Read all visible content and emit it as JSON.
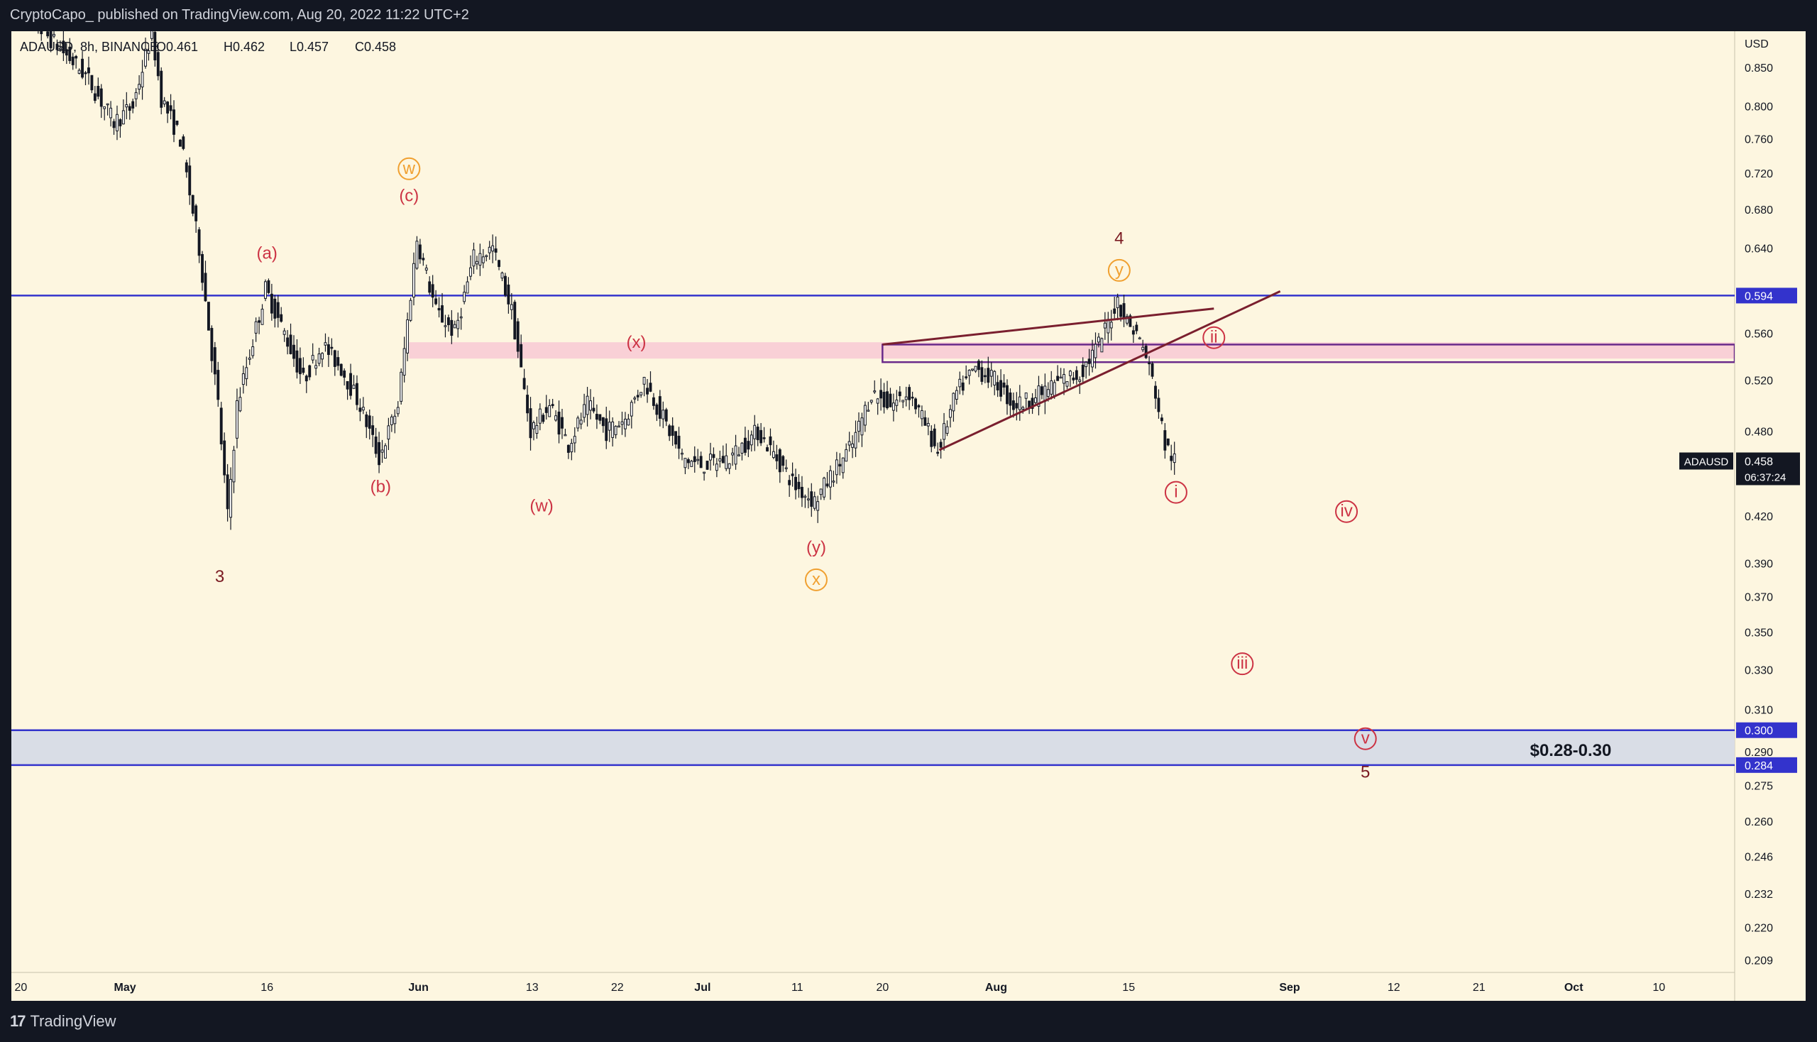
{
  "header": {
    "published_text": "CryptoCapo_ published on TradingView.com, Aug 20, 2022 11:22 UTC+2"
  },
  "footer": {
    "logo_text": "TradingView"
  },
  "colors": {
    "background": "#fdf6e0",
    "frame": "#131722",
    "candle_up": "#ffffff",
    "candle_down": "#131722",
    "blue_line": "#3333cc",
    "pink_band": "#f8c9d4",
    "support_band": "#d9dde6",
    "wedge_line": "#7a1f2e",
    "label_red": "#cc3344",
    "label_orange": "#f0a030",
    "label_dark": "#7a1a22"
  },
  "chart_data": {
    "type": "candlestick",
    "symbol_line": {
      "symbol": "ADAUSD, 8h, BINANCE",
      "open": "O0.461",
      "high": "H0.462",
      "low": "L0.457",
      "close": "C0.458"
    },
    "currency": "USD",
    "scale": "log",
    "ylim": [
      0.205,
      0.9
    ],
    "y_ticks": [
      0.85,
      0.8,
      0.76,
      0.72,
      0.68,
      0.64,
      0.56,
      0.52,
      0.48,
      0.42,
      0.39,
      0.37,
      0.35,
      0.33,
      0.31,
      0.29,
      0.275,
      0.26,
      0.246,
      0.232,
      0.22,
      0.209
    ],
    "y_tick_labels": [
      "0.850",
      "0.800",
      "0.760",
      "0.720",
      "0.680",
      "0.640",
      "0.560",
      "0.520",
      "0.480",
      "0.420",
      "0.390",
      "0.370",
      "0.350",
      "0.330",
      "0.310",
      "0.290",
      "0.275",
      "0.260",
      "0.246",
      "0.232",
      "0.220",
      "0.209"
    ],
    "x_range": [
      "2022-04-19",
      "2022-10-18"
    ],
    "x_ticks": [
      {
        "date": "2022-04-20",
        "label": "20"
      },
      {
        "date": "2022-05-01",
        "label": "May"
      },
      {
        "date": "2022-05-16",
        "label": "16"
      },
      {
        "date": "2022-06-01",
        "label": "Jun"
      },
      {
        "date": "2022-06-13",
        "label": "13"
      },
      {
        "date": "2022-06-22",
        "label": "22"
      },
      {
        "date": "2022-07-01",
        "label": "Jul"
      },
      {
        "date": "2022-07-11",
        "label": "11"
      },
      {
        "date": "2022-07-20",
        "label": "20"
      },
      {
        "date": "2022-08-01",
        "label": "Aug"
      },
      {
        "date": "2022-08-15",
        "label": "15"
      },
      {
        "date": "2022-09-01",
        "label": "Sep"
      },
      {
        "date": "2022-09-12",
        "label": "12"
      },
      {
        "date": "2022-09-21",
        "label": "21"
      },
      {
        "date": "2022-10-01",
        "label": "Oct"
      },
      {
        "date": "2022-10-10",
        "label": "10"
      }
    ],
    "price_path": [
      [
        "2022-04-19",
        0.94
      ],
      [
        "2022-04-21",
        0.92
      ],
      [
        "2022-04-24",
        0.88
      ],
      [
        "2022-04-27",
        0.84
      ],
      [
        "2022-04-30",
        0.78
      ],
      [
        "2022-05-02",
        0.8
      ],
      [
        "2022-05-04",
        0.9
      ],
      [
        "2022-05-05",
        0.81
      ],
      [
        "2022-05-07",
        0.76
      ],
      [
        "2022-05-09",
        0.64
      ],
      [
        "2022-05-11",
        0.5
      ],
      [
        "2022-05-12",
        0.42
      ],
      [
        "2022-05-13",
        0.5
      ],
      [
        "2022-05-16",
        0.6
      ],
      [
        "2022-05-18",
        0.56
      ],
      [
        "2022-05-20",
        0.52
      ],
      [
        "2022-05-22",
        0.55
      ],
      [
        "2022-05-24",
        0.53
      ],
      [
        "2022-05-26",
        0.5
      ],
      [
        "2022-05-28",
        0.46
      ],
      [
        "2022-05-30",
        0.5
      ],
      [
        "2022-06-01",
        0.65
      ],
      [
        "2022-06-03",
        0.58
      ],
      [
        "2022-06-05",
        0.56
      ],
      [
        "2022-06-07",
        0.63
      ],
      [
        "2022-06-09",
        0.64
      ],
      [
        "2022-06-11",
        0.58
      ],
      [
        "2022-06-13",
        0.48
      ],
      [
        "2022-06-15",
        0.5
      ],
      [
        "2022-06-17",
        0.47
      ],
      [
        "2022-06-19",
        0.5
      ],
      [
        "2022-06-21",
        0.48
      ],
      [
        "2022-06-23",
        0.49
      ],
      [
        "2022-06-25",
        0.52
      ],
      [
        "2022-06-27",
        0.49
      ],
      [
        "2022-06-29",
        0.46
      ],
      [
        "2022-07-01",
        0.455
      ],
      [
        "2022-07-04",
        0.46
      ],
      [
        "2022-07-07",
        0.48
      ],
      [
        "2022-07-09",
        0.46
      ],
      [
        "2022-07-11",
        0.44
      ],
      [
        "2022-07-13",
        0.43
      ],
      [
        "2022-07-15",
        0.45
      ],
      [
        "2022-07-17",
        0.47
      ],
      [
        "2022-07-19",
        0.51
      ],
      [
        "2022-07-21",
        0.5
      ],
      [
        "2022-07-23",
        0.51
      ],
      [
        "2022-07-25",
        0.48
      ],
      [
        "2022-07-26",
        0.465
      ],
      [
        "2022-07-28",
        0.51
      ],
      [
        "2022-07-30",
        0.53
      ],
      [
        "2022-08-01",
        0.52
      ],
      [
        "2022-08-03",
        0.5
      ],
      [
        "2022-08-05",
        0.505
      ],
      [
        "2022-08-08",
        0.52
      ],
      [
        "2022-08-10",
        0.525
      ],
      [
        "2022-08-12",
        0.55
      ],
      [
        "2022-08-14",
        0.59
      ],
      [
        "2022-08-15",
        0.57
      ],
      [
        "2022-08-16",
        0.56
      ],
      [
        "2022-08-17",
        0.54
      ],
      [
        "2022-08-18",
        0.51
      ],
      [
        "2022-08-19",
        0.47
      ],
      [
        "2022-08-20",
        0.458
      ]
    ],
    "horizontal_levels": [
      {
        "price": 0.594,
        "label": "0.594",
        "from": "2022-04-19"
      },
      {
        "price": 0.3,
        "label": "0.300",
        "from": "2022-04-19"
      },
      {
        "price": 0.284,
        "label": "0.284",
        "from": "2022-04-19"
      }
    ],
    "resistance_band": {
      "from": "2022-05-31",
      "low": 0.538,
      "high": 0.552
    },
    "right_rectangle": {
      "from": "2022-07-20",
      "low": 0.535,
      "high": 0.55
    },
    "support_zone": {
      "low": 0.284,
      "high": 0.3,
      "label": "$0.28-0.30"
    },
    "wedge_lines": [
      {
        "from": [
          "2022-07-20",
          0.55
        ],
        "to": [
          "2022-08-24",
          0.582
        ]
      },
      {
        "from": [
          "2022-07-26",
          0.466
        ],
        "to": [
          "2022-08-31",
          0.598
        ]
      }
    ],
    "current_price": {
      "symbol": "ADAUSD",
      "value": "0.458",
      "countdown": "06:37:24"
    },
    "wave_labels": [
      {
        "text": "3",
        "date": "2022-05-11",
        "price": 0.382,
        "style": "dark"
      },
      {
        "text": "(a)",
        "date": "2022-05-16",
        "price": 0.635,
        "style": "red"
      },
      {
        "text": "(b)",
        "date": "2022-05-28",
        "price": 0.44,
        "style": "red"
      },
      {
        "text": "w",
        "date": "2022-05-31",
        "price": 0.725,
        "style": "orange-circle"
      },
      {
        "text": "(c)",
        "date": "2022-05-31",
        "price": 0.695,
        "style": "red"
      },
      {
        "text": "(x)",
        "date": "2022-06-24",
        "price": 0.552,
        "style": "red"
      },
      {
        "text": "(w)",
        "date": "2022-06-14",
        "price": 0.427,
        "style": "red"
      },
      {
        "text": "(y)",
        "date": "2022-07-13",
        "price": 0.4,
        "style": "red"
      },
      {
        "text": "x",
        "date": "2022-07-13",
        "price": 0.38,
        "style": "orange-circle"
      },
      {
        "text": "4",
        "date": "2022-08-14",
        "price": 0.65,
        "style": "dark"
      },
      {
        "text": "y",
        "date": "2022-08-14",
        "price": 0.618,
        "style": "orange-circle"
      },
      {
        "text": "ii",
        "date": "2022-08-24",
        "price": 0.556,
        "style": "red-circle"
      },
      {
        "text": "i",
        "date": "2022-08-20",
        "price": 0.436,
        "style": "red-circle"
      },
      {
        "text": "iv",
        "date": "2022-09-07",
        "price": 0.423,
        "style": "red-circle"
      },
      {
        "text": "iii",
        "date": "2022-08-27",
        "price": 0.333,
        "style": "red-circle"
      },
      {
        "text": "v",
        "date": "2022-09-09",
        "price": 0.296,
        "style": "red-circle"
      },
      {
        "text": "5",
        "date": "2022-09-09",
        "price": 0.281,
        "style": "dark"
      }
    ]
  }
}
